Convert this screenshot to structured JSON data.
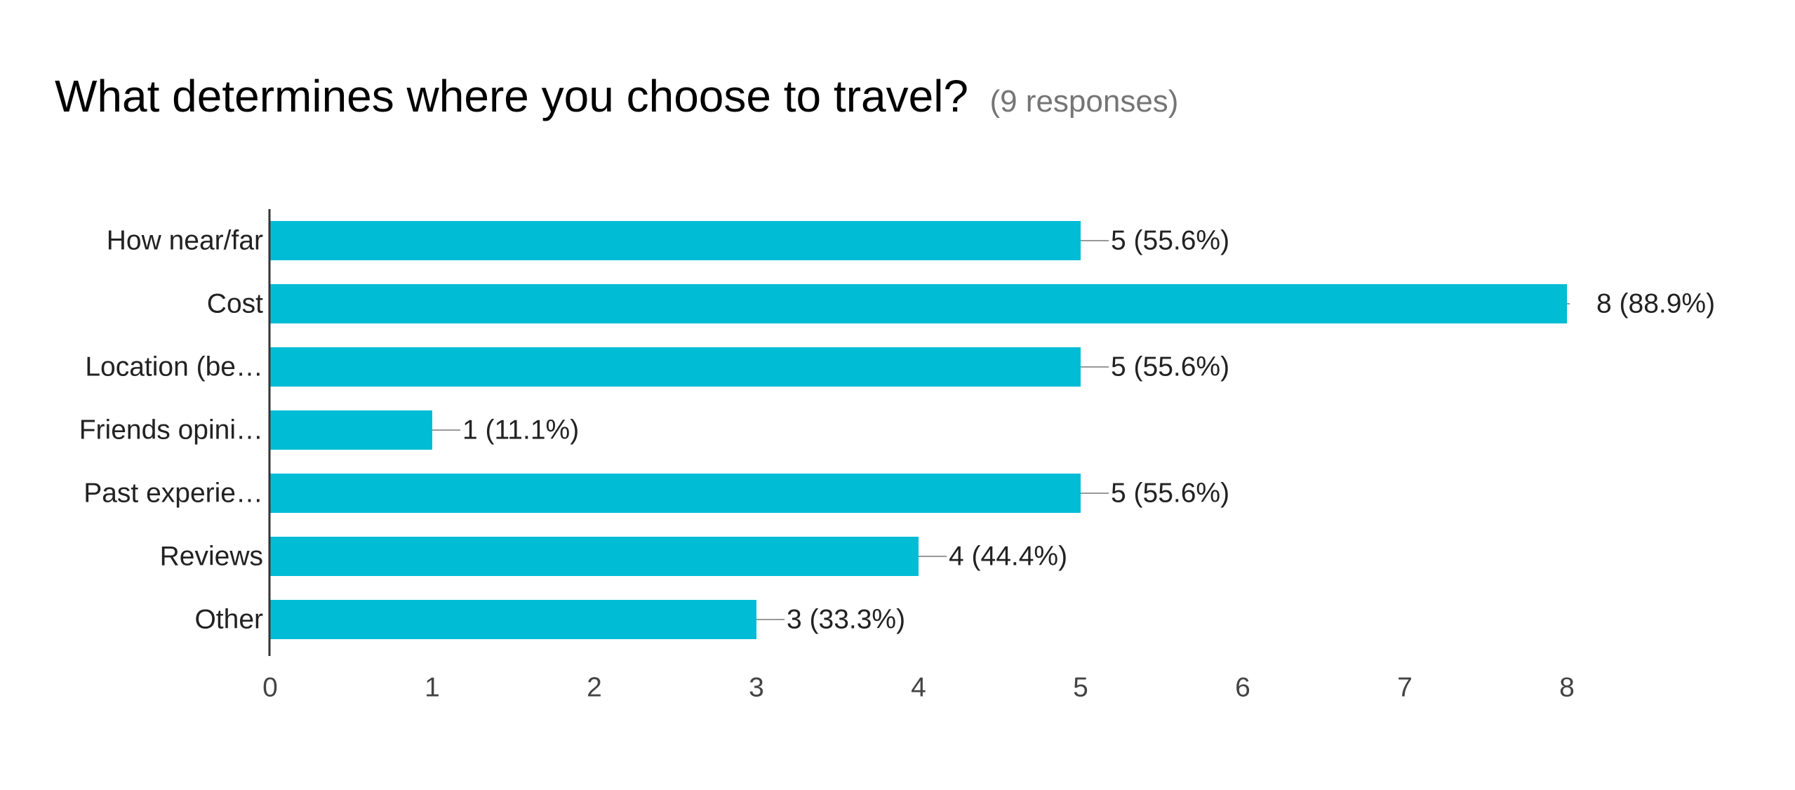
{
  "chart_data": {
    "type": "bar",
    "orientation": "horizontal",
    "title": "What determines where you choose to travel?",
    "subtitle": "(9 responses)",
    "categories": [
      "How near/far",
      "Cost",
      "Location (be…",
      "Friends opini…",
      "Past experie…",
      "Reviews",
      "Other"
    ],
    "values": [
      5,
      8,
      5,
      1,
      5,
      4,
      3
    ],
    "value_labels": [
      "5 (55.6%)",
      "8 (88.9%)",
      "5 (55.6%)",
      "1 (11.1%)",
      "5 (55.6%)",
      "4 (44.4%)",
      "3 (33.3%)"
    ],
    "xlim": [
      0,
      8
    ],
    "xticks": [
      "0",
      "1",
      "2",
      "3",
      "4",
      "5",
      "6",
      "7",
      "8"
    ],
    "grid": false,
    "legend": "none",
    "bar_color": "#00BCD4"
  }
}
